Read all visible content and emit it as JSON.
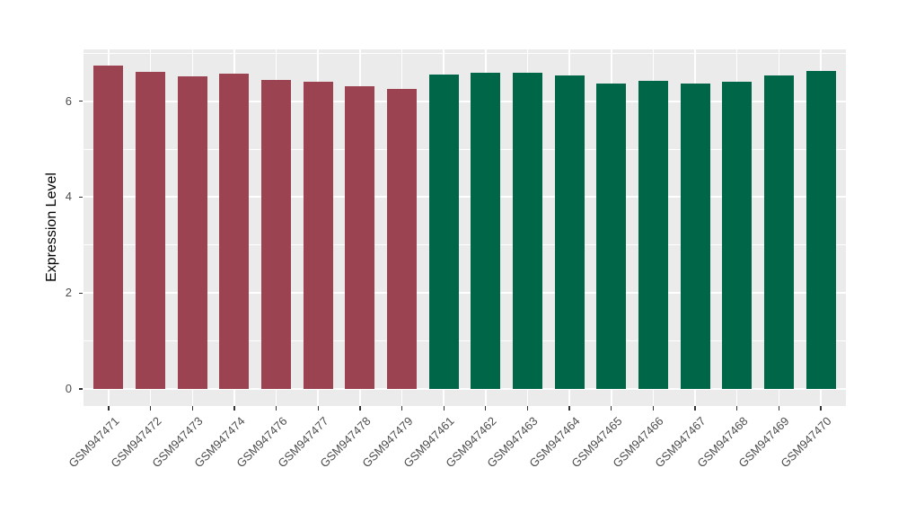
{
  "chart_data": {
    "type": "bar",
    "title": "",
    "xlabel": "",
    "ylabel": "Expression Level",
    "ylim": [
      0,
      7.1
    ],
    "yticks": [
      0,
      2,
      4,
      6
    ],
    "ytick_labels": [
      "0",
      "2",
      "4",
      "6"
    ],
    "yticks_minor": [
      1,
      3,
      5,
      7
    ],
    "grid": true,
    "legend_position": "none",
    "panel_background_color": "#EBEBEB",
    "gridline_color": "#FFFFFF",
    "group_colors": {
      "maroon": "#9C4352",
      "green": "#006648"
    },
    "categories": [
      "GSM947471",
      "GSM947472",
      "GSM947473",
      "GSM947474",
      "GSM947476",
      "GSM947477",
      "GSM947478",
      "GSM947479",
      "GSM947461",
      "GSM947462",
      "GSM947463",
      "GSM947464",
      "GSM947465",
      "GSM947466",
      "GSM947467",
      "GSM947468",
      "GSM947469",
      "GSM947470"
    ],
    "values": [
      6.74,
      6.61,
      6.52,
      6.58,
      6.44,
      6.4,
      6.31,
      6.26,
      6.55,
      6.6,
      6.6,
      6.54,
      6.36,
      6.43,
      6.36,
      6.4,
      6.54,
      6.62
    ],
    "bar_group_keys": [
      "maroon",
      "maroon",
      "maroon",
      "maroon",
      "maroon",
      "maroon",
      "maroon",
      "maroon",
      "green",
      "green",
      "green",
      "green",
      "green",
      "green",
      "green",
      "green",
      "green",
      "green"
    ]
  }
}
